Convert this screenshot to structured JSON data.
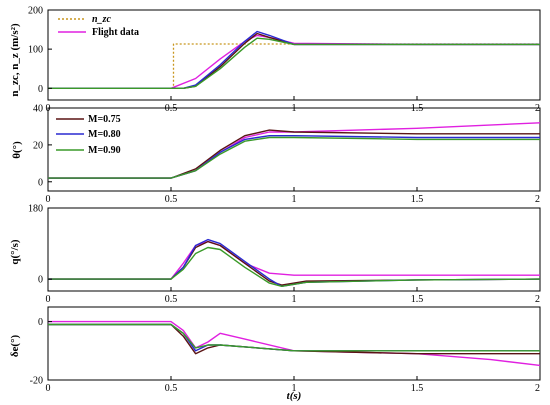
{
  "figure": {
    "xlabel": "t(s)",
    "colors": {
      "command": "#c8961e",
      "flight": "#e020e0",
      "m075": "#5a1414",
      "m080": "#2a2ad0",
      "m090": "#3a9a28"
    }
  },
  "chart_data": [
    {
      "type": "line",
      "panel": "acceleration",
      "ylabel": "n_zc, n_z (m/s²)",
      "xlim": [
        0,
        2
      ],
      "ylim": [
        -30,
        200
      ],
      "yticks": [
        0,
        100,
        200
      ],
      "xticks": [
        0,
        0.5,
        1,
        1.5,
        2
      ],
      "xtick_labels": [
        "0",
        "0.5",
        "1",
        "1.5",
        "2"
      ],
      "legend": {
        "placement": "top-left",
        "entries": [
          "n_zc",
          "Flight data"
        ]
      },
      "series": [
        {
          "name": "n_zc",
          "color": "command",
          "dashed": true,
          "x": [
            0,
            0.51,
            0.51,
            2
          ],
          "y": [
            0,
            0,
            113,
            113
          ]
        },
        {
          "name": "Flight data",
          "color": "flight",
          "x": [
            0,
            0.5,
            0.6,
            0.7,
            0.8,
            0.85,
            0.9,
            1.0,
            1.5,
            2.0
          ],
          "y": [
            0,
            0,
            25,
            75,
            120,
            135,
            130,
            115,
            112,
            112
          ]
        },
        {
          "name": "M=0.75",
          "color": "m075",
          "x": [
            0,
            0.55,
            0.6,
            0.7,
            0.8,
            0.85,
            0.9,
            1.0,
            1.5,
            2.0
          ],
          "y": [
            0,
            0,
            5,
            55,
            115,
            140,
            130,
            112,
            112,
            112
          ]
        },
        {
          "name": "M=0.80",
          "color": "m080",
          "x": [
            0,
            0.55,
            0.6,
            0.7,
            0.8,
            0.85,
            0.9,
            1.0,
            1.5,
            2.0
          ],
          "y": [
            0,
            0,
            8,
            60,
            120,
            145,
            135,
            112,
            112,
            112
          ]
        },
        {
          "name": "M=0.90",
          "color": "m090",
          "x": [
            0,
            0.55,
            0.6,
            0.7,
            0.8,
            0.85,
            0.9,
            1.0,
            1.5,
            2.0
          ],
          "y": [
            0,
            0,
            5,
            50,
            105,
            128,
            125,
            112,
            112,
            112
          ]
        }
      ]
    },
    {
      "type": "line",
      "panel": "pitch",
      "ylabel": "θ(°)",
      "xlim": [
        0,
        2
      ],
      "ylim": [
        -5,
        40
      ],
      "yticks": [
        0,
        20,
        40
      ],
      "xticks": [
        0,
        0.5,
        1,
        1.5,
        2
      ],
      "xtick_labels": [
        "0",
        "0.5",
        "1",
        "1.5",
        "2"
      ],
      "legend": {
        "placement": "top-left",
        "entries": [
          "M=0.75",
          "M=0.80",
          "M=0.90"
        ]
      },
      "series": [
        {
          "name": "Flight data",
          "color": "flight",
          "x": [
            0,
            0.5,
            0.6,
            0.7,
            0.8,
            0.9,
            1.0,
            1.5,
            2.0
          ],
          "y": [
            2,
            2,
            6,
            16,
            24,
            27,
            27,
            29,
            32
          ]
        },
        {
          "name": "M=0.75",
          "color": "m075",
          "x": [
            0,
            0.5,
            0.6,
            0.7,
            0.8,
            0.9,
            1.0,
            1.5,
            2.0
          ],
          "y": [
            2,
            2,
            7,
            17,
            25,
            28,
            27,
            26,
            26
          ]
        },
        {
          "name": "M=0.80",
          "color": "m080",
          "x": [
            0,
            0.5,
            0.6,
            0.7,
            0.8,
            0.9,
            1.0,
            1.5,
            2.0
          ],
          "y": [
            2,
            2,
            6,
            16,
            23,
            25,
            25,
            24,
            24
          ]
        },
        {
          "name": "M=0.90",
          "color": "m090",
          "x": [
            0,
            0.5,
            0.6,
            0.7,
            0.8,
            0.9,
            1.0,
            1.5,
            2.0
          ],
          "y": [
            2,
            2,
            6,
            15,
            22,
            24,
            24,
            23,
            23
          ]
        }
      ]
    },
    {
      "type": "line",
      "panel": "pitch-rate",
      "ylabel": "q(°/s)",
      "xlim": [
        0,
        2
      ],
      "ylim": [
        -30,
        180
      ],
      "yticks": [
        0,
        180
      ],
      "xticks": [
        0,
        0.5,
        1,
        1.5,
        2
      ],
      "xtick_labels": [
        "0",
        "0.5",
        "1",
        "1.5",
        "2"
      ],
      "series": [
        {
          "name": "Flight data",
          "color": "flight",
          "x": [
            0,
            0.5,
            0.55,
            0.6,
            0.65,
            0.7,
            0.8,
            0.9,
            1.0,
            1.5,
            2.0
          ],
          "y": [
            0,
            0,
            40,
            85,
            95,
            85,
            40,
            15,
            10,
            10,
            10
          ]
        },
        {
          "name": "M=0.75",
          "color": "m075",
          "x": [
            0,
            0.5,
            0.55,
            0.6,
            0.65,
            0.7,
            0.8,
            0.9,
            0.95,
            1.05,
            1.5,
            2.0
          ],
          "y": [
            0,
            0,
            30,
            80,
            95,
            85,
            40,
            -5,
            -15,
            -5,
            -2,
            0
          ]
        },
        {
          "name": "M=0.80",
          "color": "m080",
          "x": [
            0,
            0.5,
            0.55,
            0.6,
            0.65,
            0.7,
            0.8,
            0.9,
            0.95,
            1.05,
            1.5,
            2.0
          ],
          "y": [
            0,
            0,
            30,
            85,
            100,
            90,
            45,
            0,
            -18,
            -8,
            -2,
            0
          ]
        },
        {
          "name": "M=0.90",
          "color": "m090",
          "x": [
            0,
            0.5,
            0.55,
            0.6,
            0.65,
            0.7,
            0.8,
            0.9,
            0.95,
            1.05,
            1.5,
            2.0
          ],
          "y": [
            0,
            0,
            25,
            65,
            80,
            75,
            30,
            -10,
            -18,
            -8,
            -2,
            0
          ]
        }
      ]
    },
    {
      "type": "line",
      "panel": "elevator",
      "ylabel": "δe(°)",
      "xlim": [
        0,
        2
      ],
      "ylim": [
        -20,
        5
      ],
      "yticks": [
        -20,
        0
      ],
      "xticks": [
        0,
        0.5,
        1,
        1.5,
        2
      ],
      "xtick_labels": [
        "0",
        "0.5",
        "1",
        "1.5",
        "2"
      ],
      "series": [
        {
          "name": "Flight data",
          "color": "flight",
          "x": [
            0,
            0.5,
            0.55,
            0.6,
            0.65,
            0.7,
            0.8,
            1.0,
            1.5,
            1.8,
            2.0
          ],
          "y": [
            0,
            0,
            -3,
            -9,
            -7,
            -4,
            -6,
            -10,
            -11,
            -13,
            -15
          ]
        },
        {
          "name": "M=0.75",
          "color": "m075",
          "x": [
            0,
            0.5,
            0.55,
            0.6,
            0.65,
            0.7,
            1.0,
            1.5,
            2.0
          ],
          "y": [
            -1,
            -1,
            -5,
            -11,
            -9,
            -8,
            -10,
            -11,
            -11
          ]
        },
        {
          "name": "M=0.80",
          "color": "m080",
          "x": [
            0,
            0.5,
            0.55,
            0.6,
            0.65,
            0.7,
            1.0,
            1.5,
            2.0
          ],
          "y": [
            -1,
            -1,
            -4,
            -10,
            -8,
            -8,
            -10,
            -10,
            -10
          ]
        },
        {
          "name": "M=0.90",
          "color": "m090",
          "x": [
            0,
            0.5,
            0.55,
            0.6,
            0.65,
            0.7,
            1.0,
            1.5,
            2.0
          ],
          "y": [
            -1,
            -1,
            -4,
            -9,
            -8,
            -8,
            -10,
            -10,
            -10
          ]
        }
      ]
    }
  ]
}
